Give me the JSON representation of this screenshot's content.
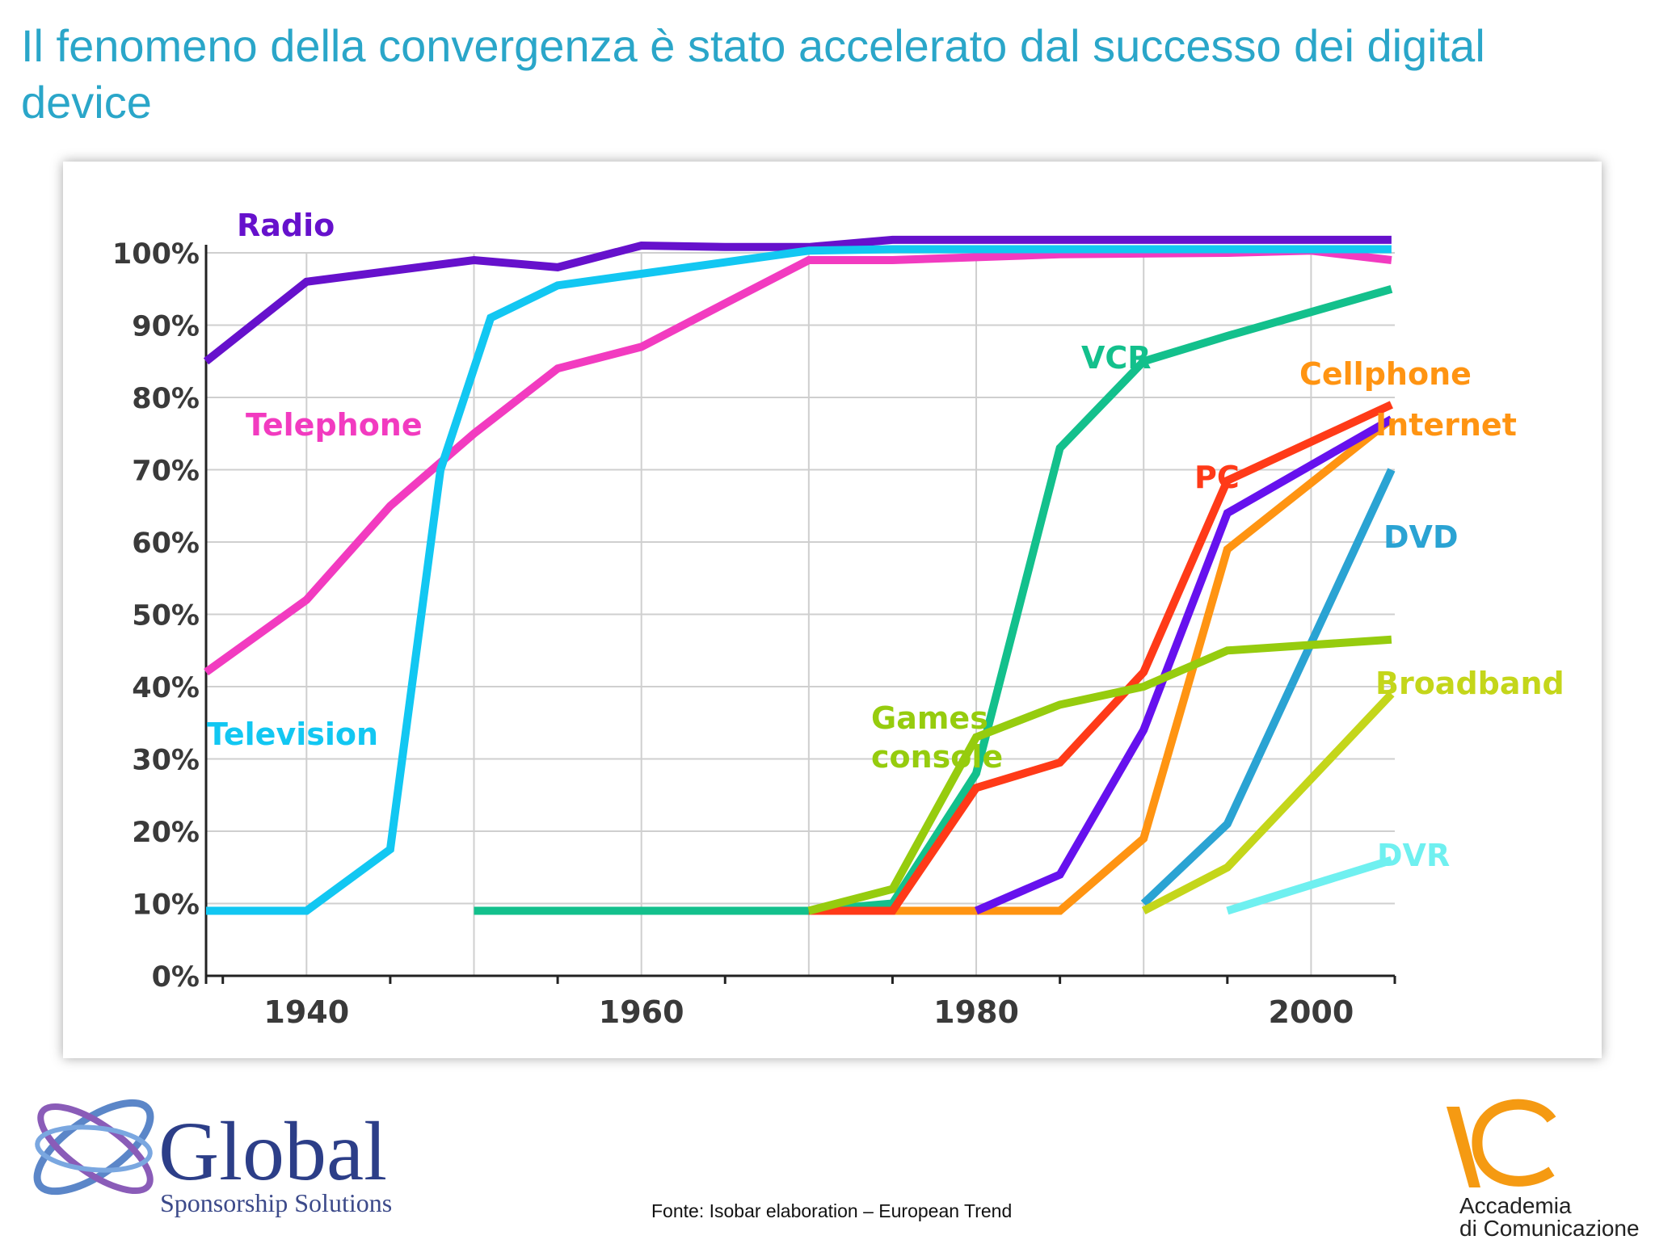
{
  "slide": {
    "title": "Il fenomeno della convergenza è stato accelerato dal successo dei digital device",
    "source": "Fonte: Isobar elaboration – European Trend"
  },
  "logos": {
    "global": {
      "name": "Global",
      "tagline": "Sponsorship Solutions"
    },
    "accademia": {
      "line1": "Accademia",
      "line2": "di Comunicazione"
    }
  },
  "chart_data": {
    "type": "line",
    "title": "",
    "xlabel": "",
    "ylabel": "",
    "xlim": [
      1934,
      2005
    ],
    "ylim": [
      0,
      100
    ],
    "x_ticks": [
      1940,
      1960,
      1980,
      2000
    ],
    "y_ticks": [
      "0%",
      "10%",
      "20%",
      "30%",
      "40%",
      "50%",
      "60%",
      "70%",
      "80%",
      "90%",
      "100%"
    ],
    "y_tick_values": [
      0,
      10,
      20,
      30,
      40,
      50,
      60,
      70,
      80,
      90,
      100
    ],
    "grid": true,
    "series": [
      {
        "name": "Radio",
        "color": "#6611cc",
        "label_color": "#6611cc",
        "points": [
          [
            1934,
            85
          ],
          [
            1940,
            96
          ],
          [
            1945,
            97.5
          ],
          [
            1950,
            99
          ],
          [
            1955,
            98
          ],
          [
            1960,
            101
          ],
          [
            1965,
            100.8
          ],
          [
            1970,
            100.8
          ],
          [
            1975,
            101.8
          ],
          [
            1985,
            101.8
          ],
          [
            1995,
            101.8
          ],
          [
            2004.8,
            101.8
          ]
        ]
      },
      {
        "name": "Telephone",
        "color": "#f23bc0",
        "label_color": "#f23bc0",
        "points": [
          [
            1934,
            42
          ],
          [
            1940,
            52
          ],
          [
            1945,
            65
          ],
          [
            1950,
            75
          ],
          [
            1955,
            84
          ],
          [
            1960,
            87
          ],
          [
            1965,
            93
          ],
          [
            1970,
            99
          ],
          [
            1975,
            99
          ],
          [
            1985,
            99.8
          ],
          [
            1995,
            100
          ],
          [
            2000,
            100.3
          ],
          [
            2004.8,
            99
          ]
        ]
      },
      {
        "name": "Television",
        "color": "#12c7f2",
        "label_color": "#12c7f2",
        "points": [
          [
            1934,
            9
          ],
          [
            1940,
            9
          ],
          [
            1945,
            17.5
          ],
          [
            1948,
            70
          ],
          [
            1951,
            91
          ],
          [
            1955,
            95.5
          ],
          [
            1970,
            100.3
          ],
          [
            1975,
            100.5
          ],
          [
            2004.8,
            100.5
          ]
        ]
      },
      {
        "name": "VCR",
        "color": "#13c08c",
        "label_color": "#13c08c",
        "points": [
          [
            1950,
            9
          ],
          [
            1970,
            9
          ],
          [
            1975,
            10
          ],
          [
            1980,
            28
          ],
          [
            1985,
            73
          ],
          [
            1990,
            85
          ],
          [
            1995,
            88.5
          ],
          [
            2004.8,
            95
          ]
        ]
      },
      {
        "name": "Cellphone",
        "color": "#ff9412",
        "label_color": "#ff9412",
        "points": [
          [
            1970,
            9
          ],
          [
            1985,
            9
          ],
          [
            1990,
            19
          ],
          [
            1995,
            59
          ],
          [
            2004.8,
            77
          ]
        ]
      },
      {
        "name": "PC",
        "color": "#ff3a18",
        "label_color": "#ff3a18",
        "points": [
          [
            1970,
            9
          ],
          [
            1975,
            9
          ],
          [
            1980,
            26
          ],
          [
            1985,
            29.5
          ],
          [
            1990,
            42
          ],
          [
            1995,
            68.5
          ],
          [
            2004.8,
            79
          ]
        ]
      },
      {
        "name": "Internet",
        "color": "#6611ee",
        "label_color": "#ff9412",
        "points": [
          [
            1980,
            9
          ],
          [
            1985,
            14
          ],
          [
            1990,
            34
          ],
          [
            1995,
            64
          ],
          [
            2004.8,
            77
          ]
        ]
      },
      {
        "name": "DVD",
        "color": "#2aa3d3",
        "label_color": "#2aa3d3",
        "points": [
          [
            1990,
            10
          ],
          [
            1995,
            21
          ],
          [
            2004.8,
            70
          ]
        ]
      },
      {
        "name": "Games console",
        "color": "#96cc0e",
        "label_color": "#96cc0e",
        "points": [
          [
            1970,
            9
          ],
          [
            1975,
            12
          ],
          [
            1980,
            33
          ],
          [
            1985,
            37.5
          ],
          [
            1990,
            40
          ],
          [
            1995,
            45
          ],
          [
            2004.8,
            46.5
          ]
        ]
      },
      {
        "name": "Broadband",
        "color": "#c4d61a",
        "label_color": "#c4d61a",
        "points": [
          [
            1990,
            9
          ],
          [
            1995,
            15
          ],
          [
            2004.8,
            39
          ]
        ]
      },
      {
        "name": "DVR",
        "color": "#6ff0f0",
        "label_color": "#6ff0f0",
        "points": [
          [
            1995,
            9
          ],
          [
            2004.8,
            16
          ]
        ]
      }
    ]
  }
}
